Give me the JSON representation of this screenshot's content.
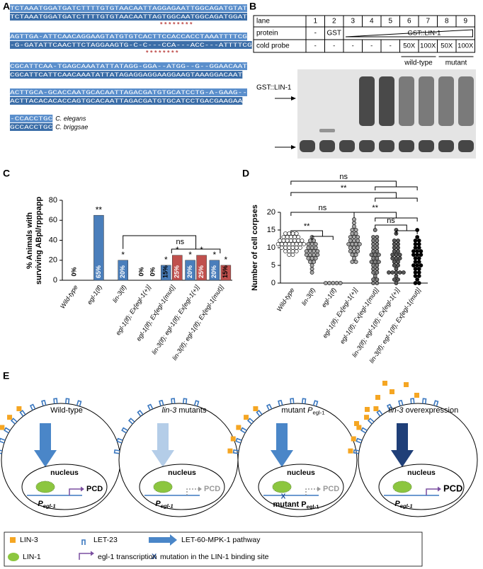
{
  "panel_labels": [
    "A",
    "B",
    "C",
    "D",
    "E"
  ],
  "A": {
    "blocks": [
      [
        "TCTAAATGGATGATCTTTTGTGTAACAATTAGGAGAATTGGCAGATGTAT",
        "TCTAAATGGATGATCTTTTGTGTAACAATTAGTGGCAATGGCAGATGGAT"
      ],
      [
        "AGTTGA-ATTCAACAGGAAGTATGTGTCACTTCCACCACCTAAATTTTCG",
        "-G-GATATTCAACTTCTAGGAAGTG-C-C---CCA---ACC---ATTTTCG"
      ],
      [
        "CGCATTCAA-TGAGCAAATATTATAGG-GGA--ATGG--G--GGAACAAT",
        "CGCATTCATTCAACAAATATTATAGAGGAGGAAGGAAGTAAAGGACAAT"
      ],
      [
        "ACTTGCA-GCACCAATGCACAATTAGACGATGTGCATCCTG-A-GAAG--",
        "ACTTACACACACCAGTGCACAATTAGACGATGTGCATCCTGACGAAGAA"
      ],
      [
        "-CCACCTGC",
        "GCCACCTGC"
      ]
    ],
    "stars": [
      "* * * * * * * *",
      "* * * * * * * *"
    ],
    "species": [
      "C. elegans",
      "C. briggsae"
    ]
  },
  "B": {
    "headers": [
      "lane",
      "protein",
      "cold probe"
    ],
    "lanes": [
      "1",
      "2",
      "3",
      "4",
      "5",
      "6",
      "7",
      "8",
      "9"
    ],
    "protein": [
      "-",
      "GST",
      "GST::LIN-1"
    ],
    "cold_probe": [
      "-",
      "-",
      "-",
      "-",
      "-",
      "50X",
      "100X",
      "50X",
      "100X"
    ],
    "groups": [
      "wild-type",
      "mutant"
    ],
    "gel_label": "GST::LIN-1"
  },
  "chart_data": [
    {
      "type": "bar",
      "y_label": [
        "% Animals with",
        "surviving ABpl/rpppapp"
      ],
      "categories": [
        "Wild-type",
        "egl-1(lf)",
        "lin-3(lf)",
        "egl-1(lf); Ex[egl-1(+)]",
        "egl-1(lf); Ex[egl-1(mut)]",
        "lin-3(lf); egl-1(lf); Ex[egl-1(+)]",
        "lin-3(lf); egl-1(lf); Ex[egl-1(mut)]"
      ],
      "series": [
        {
          "color": "#4a7ebb",
          "values": [
            0,
            65,
            20,
            0,
            15,
            20,
            20
          ],
          "value_labels": [
            "0%",
            "65%",
            "20%",
            "0%",
            "15%",
            "20%",
            "20%"
          ],
          "significance": [
            null,
            "**",
            "*",
            null,
            "*",
            "*",
            "*"
          ]
        },
        {
          "color": "#c0504d",
          "values": [
            null,
            null,
            null,
            0,
            25,
            25,
            15
          ],
          "value_labels": [
            null,
            null,
            null,
            "0%",
            "25%",
            "25%",
            "15%"
          ],
          "significance": [
            null,
            null,
            null,
            null,
            "*",
            "*",
            "*"
          ]
        }
      ],
      "ylim": [
        0,
        80
      ],
      "yticks": [
        0,
        20,
        40,
        60,
        80
      ],
      "annotations": [
        "ns"
      ]
    },
    {
      "type": "strip",
      "y_label": "Number of cell corpses",
      "categories": [
        "Wild-type",
        "lin-3(lf)",
        "egl-1(lf)",
        "egl-1(lf); Ex[egl-1(+)]",
        "egl-1(lf); Ex[egl-1(mut)]",
        "lin-3(lf); egl-1(lf); Ex[egl-1(+)]",
        "lin-3(lf); egl-1(lf); Ex[egl-1(mut)]"
      ],
      "colors": [
        "#ffffff",
        "#a6a6a6",
        "#a6a6a6",
        "#a6a6a6",
        "#7f7f7f",
        "#595959",
        "#000000"
      ],
      "values": [
        [
          14,
          14,
          14,
          14,
          13,
          13,
          13,
          13,
          13,
          12,
          12,
          12,
          12,
          12,
          12,
          12,
          11,
          11,
          11,
          11,
          11,
          11,
          11,
          11,
          10,
          10,
          10,
          10,
          10,
          10,
          9,
          9,
          9,
          9,
          8,
          8
        ],
        [
          13,
          12,
          12,
          11,
          11,
          11,
          10,
          10,
          10,
          9,
          9,
          9,
          9,
          8,
          8,
          8,
          8,
          7,
          7,
          7,
          6,
          6,
          5,
          4,
          3
        ],
        [
          0,
          0,
          0,
          0,
          0
        ],
        [
          18,
          17,
          16,
          15,
          15,
          14,
          14,
          13,
          13,
          13,
          12,
          12,
          12,
          11,
          11,
          11,
          11,
          10,
          10,
          10,
          9,
          9,
          9,
          8,
          8,
          7,
          6,
          6
        ],
        [
          15,
          13,
          13,
          12,
          12,
          11,
          11,
          10,
          10,
          9,
          9,
          8,
          8,
          8,
          7,
          7,
          6,
          6,
          6,
          5,
          5,
          4,
          4,
          3,
          3,
          2,
          1,
          1,
          0,
          0
        ],
        [
          15,
          14,
          12,
          12,
          11,
          11,
          10,
          10,
          9,
          9,
          8,
          8,
          8,
          7,
          7,
          7,
          6,
          6,
          5,
          5,
          4,
          3,
          3,
          3,
          3,
          3,
          2,
          1,
          1,
          0
        ],
        [
          15,
          13,
          12,
          12,
          11,
          11,
          10,
          10,
          9,
          9,
          9,
          8,
          8,
          8,
          7,
          7,
          6,
          6,
          5,
          5,
          5,
          4,
          4,
          3,
          3,
          2,
          2,
          1,
          0,
          0
        ]
      ],
      "ylim": [
        0,
        20
      ],
      "yticks": [
        0,
        5,
        10,
        15,
        20
      ],
      "brackets": [
        "ns",
        "**",
        "ns",
        "**",
        "ns",
        "**"
      ]
    }
  ],
  "E": {
    "panels": [
      {
        "title": [
          {
            "text": "Wild-type"
          }
        ],
        "arrow_color": "#4a86c8",
        "pcd_color": "#000000"
      },
      {
        "title": [
          {
            "text": "lin-3",
            "style": "italic"
          },
          {
            "text": " mutants"
          }
        ],
        "arrow_color": "#b4cde8",
        "pcd_color": "#9a9a9a"
      },
      {
        "title": [
          {
            "text": "mutant "
          },
          {
            "text": "P",
            "style": "italic"
          },
          {
            "text": "egl-1",
            "style": "sub"
          }
        ],
        "arrow_color": "#4a86c8",
        "pcd_color": "#9a9a9a",
        "mutant_label": [
          {
            "text": "mutant "
          },
          {
            "text": "P"
          },
          {
            "text": "egl-1",
            "style": "sub"
          }
        ]
      },
      {
        "title": [
          {
            "text": "lin-3",
            "style": "italic"
          },
          {
            "text": " overexpression"
          }
        ],
        "arrow_color": "#1f3f78",
        "pcd_color": "#000000"
      }
    ],
    "nucleus": "nucleus",
    "pcd": "PCD",
    "promoter": [
      {
        "text": "P"
      },
      {
        "text": "egl-1",
        "style": "sub"
      }
    ],
    "legend": [
      {
        "text": "LIN-3"
      },
      {
        "text": "LET-23"
      },
      {
        "text": "LET-60-MPK-1 pathway"
      },
      {
        "text": "LIN-1"
      },
      {
        "text": "egl-1 transcription"
      },
      {
        "symbol": "X",
        "text": "mutation in the LIN-1 binding site"
      }
    ]
  }
}
